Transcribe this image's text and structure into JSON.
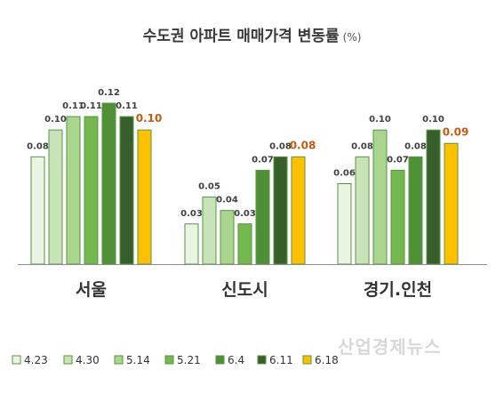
{
  "chart_data": {
    "type": "bar",
    "title": "수도권 아파트 매매가격 변동률",
    "title_unit": "(%)",
    "categories": [
      "서울",
      "신도시",
      "경기.인천"
    ],
    "series": [
      {
        "name": "4.23",
        "color": "#eaf4e3",
        "values": [
          0.08,
          0.03,
          0.06
        ]
      },
      {
        "name": "4.30",
        "color": "#c9e3b8",
        "values": [
          0.1,
          0.05,
          0.08
        ]
      },
      {
        "name": "5.14",
        "color": "#a9d58f",
        "values": [
          0.11,
          0.04,
          0.1
        ]
      },
      {
        "name": "5.21",
        "color": "#74b84f",
        "values": [
          0.11,
          0.03,
          0.07
        ]
      },
      {
        "name": "6.4",
        "color": "#4f8f36",
        "values": [
          0.12,
          0.07,
          0.08
        ]
      },
      {
        "name": "6.11",
        "color": "#375f2b",
        "values": [
          0.11,
          0.08,
          0.1
        ]
      },
      {
        "name": "6.18",
        "color": "#ffc000",
        "values": [
          0.1,
          0.08,
          0.09
        ]
      }
    ],
    "ylim": [
      0,
      0.12
    ],
    "highlight_label_color": "#c55a11",
    "legend_position": "bottom",
    "grid": false
  },
  "watermark": "산업경제뉴스"
}
